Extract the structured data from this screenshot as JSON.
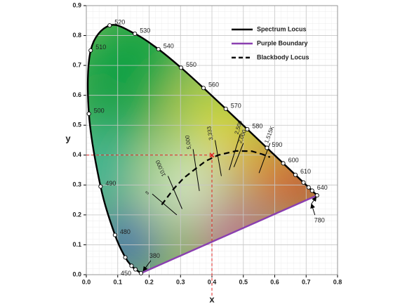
{
  "chart_data": {
    "type": "chromaticity",
    "xlabel": "x",
    "ylabel": "y",
    "xlim": [
      0,
      0.8
    ],
    "ylim": [
      0,
      0.9
    ],
    "xticks": [
      {
        "value": 0,
        "label": "0.0"
      },
      0.1,
      0.2,
      0.3,
      0.4,
      0.5,
      0.6,
      0.7,
      0.8
    ],
    "yticks": [
      {
        "value": 0,
        "label": "0.0"
      },
      0.1,
      0.2,
      0.3,
      0.4,
      0.5,
      0.6,
      0.7,
      0.8,
      0.9
    ],
    "grid": true,
    "legend": "upper right",
    "series": [
      {
        "name": "Spectrum Locus",
        "color": "#000000",
        "x": [
          0.1741,
          0.1566,
          0.144,
          0.1241,
          0.0913,
          0.0454,
          0.0082,
          0.0139,
          0.0743,
          0.1547,
          0.2296,
          0.3016,
          0.3731,
          0.4441,
          0.5125,
          0.5752,
          0.627,
          0.6658,
          0.6915,
          0.7079,
          0.719,
          0.7347
        ],
        "y": [
          0.005,
          0.0177,
          0.0297,
          0.0578,
          0.1327,
          0.295,
          0.5384,
          0.7502,
          0.8338,
          0.8059,
          0.7543,
          0.6923,
          0.6245,
          0.5547,
          0.4866,
          0.4242,
          0.3725,
          0.334,
          0.3083,
          0.292,
          0.2809,
          0.2653
        ],
        "wavelengths": [
          "380",
          "450",
          null,
          null,
          "480",
          "490",
          "500",
          "510",
          "520",
          "530",
          "540",
          "550",
          "560",
          "570",
          "580",
          "590",
          "600",
          "610",
          null,
          null,
          "640",
          "780"
        ]
      },
      {
        "name": "Purple Boundary",
        "color": "#8a3fb0",
        "x": [
          0.1741,
          0.7347
        ],
        "y": [
          0.005,
          0.2653
        ]
      },
      {
        "name": "Blackbody Locus",
        "color": "#000000",
        "dashed": true,
        "x": [
          0.24,
          0.279,
          0.31,
          0.345,
          0.38,
          0.42,
          0.477,
          0.527,
          0.56,
          0.585
        ],
        "y": [
          0.234,
          0.288,
          0.323,
          0.352,
          0.38,
          0.4,
          0.414,
          0.413,
          0.403,
          0.393
        ]
      }
    ],
    "isotherms": [
      {
        "label": "∞",
        "x": [
          0.21,
          0.288
        ],
        "y": [
          0.27,
          0.2
        ]
      },
      {
        "label": "10,000",
        "x": [
          0.26,
          0.305
        ],
        "y": [
          0.33,
          0.22
        ]
      },
      {
        "label": "5,000",
        "x": [
          0.34,
          0.36
        ],
        "y": [
          0.42,
          0.28
        ]
      },
      {
        "label": "3,333",
        "x": [
          0.41,
          0.43
        ],
        "y": [
          0.45,
          0.33
        ]
      },
      {
        "label": "2,500",
        "x": [
          0.49,
          0.455
        ],
        "y": [
          0.47,
          0.35
        ]
      },
      {
        "label": "2,000",
        "x": [
          0.5,
          0.47
        ],
        "y": [
          0.44,
          0.36
        ]
      },
      {
        "label": "1,515K",
        "x": [
          0.585,
          0.55
        ],
        "y": [
          0.44,
          0.34
        ]
      }
    ],
    "marker": {
      "x": 0.4,
      "y": 0.4,
      "color": "#e02020"
    }
  }
}
